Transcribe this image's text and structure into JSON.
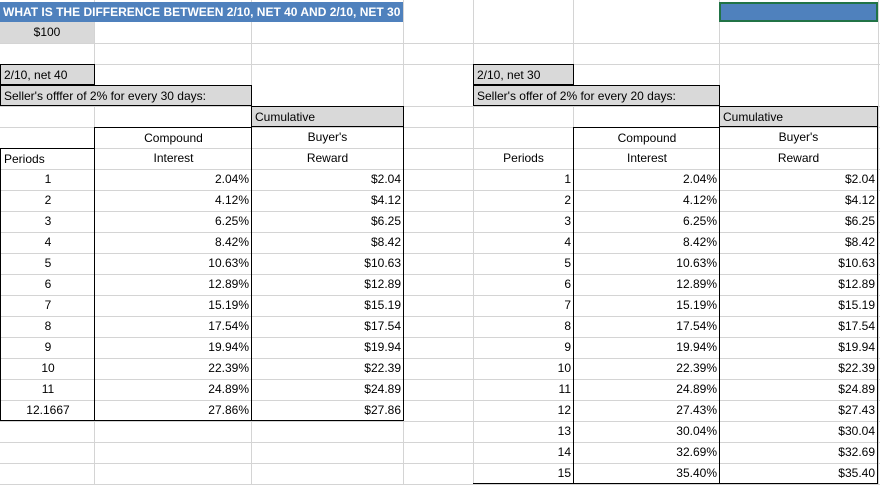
{
  "sheet": {
    "title": "WHAT IS THE DIFFERENCE BETWEEN 2/10, NET 40 AND 2/10, NET 30",
    "principal": "$100"
  },
  "colors": {
    "title_bg": "#4f81bd",
    "shade": "#d9d9d9",
    "selection": "#217346"
  },
  "left": {
    "term": "2/10, net 40",
    "offer": "Seller's offfer of 2% for every 30 days:",
    "header_cumulative": "Cumulative",
    "header_compound": "Compound",
    "header_buyers": "Buyer's",
    "header_periods": "Periods",
    "header_interest": "Interest",
    "header_reward": "Reward",
    "rows": [
      {
        "p": "1",
        "i": "2.04%",
        "r": "$2.04"
      },
      {
        "p": "2",
        "i": "4.12%",
        "r": "$4.12"
      },
      {
        "p": "3",
        "i": "6.25%",
        "r": "$6.25"
      },
      {
        "p": "4",
        "i": "8.42%",
        "r": "$8.42"
      },
      {
        "p": "5",
        "i": "10.63%",
        "r": "$10.63"
      },
      {
        "p": "6",
        "i": "12.89%",
        "r": "$12.89"
      },
      {
        "p": "7",
        "i": "15.19%",
        "r": "$15.19"
      },
      {
        "p": "8",
        "i": "17.54%",
        "r": "$17.54"
      },
      {
        "p": "9",
        "i": "19.94%",
        "r": "$19.94"
      },
      {
        "p": "10",
        "i": "22.39%",
        "r": "$22.39"
      },
      {
        "p": "11",
        "i": "24.89%",
        "r": "$24.89"
      },
      {
        "p": "12.1667",
        "i": "27.86%",
        "r": "$27.86"
      }
    ]
  },
  "right": {
    "term": "2/10, net 30",
    "offer": "Seller's offer of 2% for every 20 days:",
    "header_cumulative": "Cumulative",
    "header_compound": "Compound",
    "header_buyers": "Buyer's",
    "header_periods": "Periods",
    "header_interest": "Interest",
    "header_reward": "Reward",
    "rows": [
      {
        "p": "1",
        "i": "2.04%",
        "r": "$2.04"
      },
      {
        "p": "2",
        "i": "4.12%",
        "r": "$4.12"
      },
      {
        "p": "3",
        "i": "6.25%",
        "r": "$6.25"
      },
      {
        "p": "4",
        "i": "8.42%",
        "r": "$8.42"
      },
      {
        "p": "5",
        "i": "10.63%",
        "r": "$10.63"
      },
      {
        "p": "6",
        "i": "12.89%",
        "r": "$12.89"
      },
      {
        "p": "7",
        "i": "15.19%",
        "r": "$15.19"
      },
      {
        "p": "8",
        "i": "17.54%",
        "r": "$17.54"
      },
      {
        "p": "9",
        "i": "19.94%",
        "r": "$19.94"
      },
      {
        "p": "10",
        "i": "22.39%",
        "r": "$22.39"
      },
      {
        "p": "11",
        "i": "24.89%",
        "r": "$24.89"
      },
      {
        "p": "12",
        "i": "27.43%",
        "r": "$27.43"
      },
      {
        "p": "13",
        "i": "30.04%",
        "r": "$30.04"
      },
      {
        "p": "14",
        "i": "32.69%",
        "r": "$32.69"
      },
      {
        "p": "15",
        "i": "35.40%",
        "r": "$35.40"
      }
    ]
  }
}
